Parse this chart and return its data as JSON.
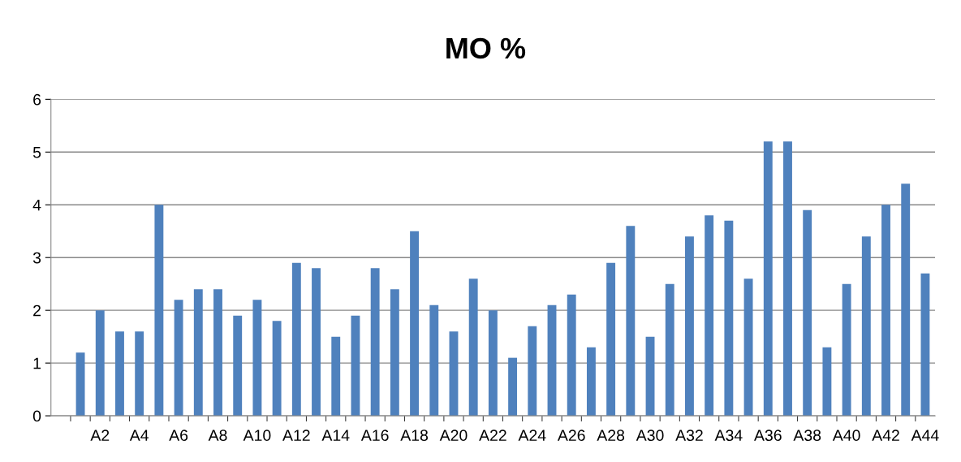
{
  "chart_data": {
    "type": "bar",
    "title": "MO %",
    "categories": [
      null,
      null,
      "A2",
      null,
      "A4",
      null,
      "A6",
      null,
      "A8",
      null,
      "A10",
      null,
      "A12",
      null,
      "A14",
      null,
      "A16",
      null,
      "A18",
      null,
      "A20",
      null,
      "A22",
      null,
      "A24",
      null,
      "A26",
      null,
      "A28",
      null,
      "A30",
      null,
      "A32",
      null,
      "A34",
      null,
      "A36",
      null,
      "A38",
      null,
      "A40",
      null,
      "A42",
      null,
      "A44"
    ],
    "values": [
      null,
      1.2,
      2.0,
      1.6,
      1.6,
      4.0,
      2.2,
      2.4,
      2.4,
      1.9,
      2.2,
      1.8,
      2.9,
      2.8,
      1.5,
      1.9,
      2.8,
      2.4,
      3.5,
      2.1,
      1.6,
      2.6,
      2.0,
      1.1,
      1.7,
      2.1,
      2.3,
      1.3,
      2.9,
      3.6,
      1.5,
      2.5,
      3.4,
      3.8,
      3.7,
      2.6,
      5.2,
      5.2,
      3.9,
      1.3,
      2.5,
      3.4,
      4.0,
      4.4,
      2.7
    ],
    "color": "#4f81bd",
    "ylim": [
      0,
      6
    ],
    "yticks": [
      0,
      1,
      2,
      3,
      4,
      5,
      6
    ],
    "grid": "y",
    "legend": false
  }
}
